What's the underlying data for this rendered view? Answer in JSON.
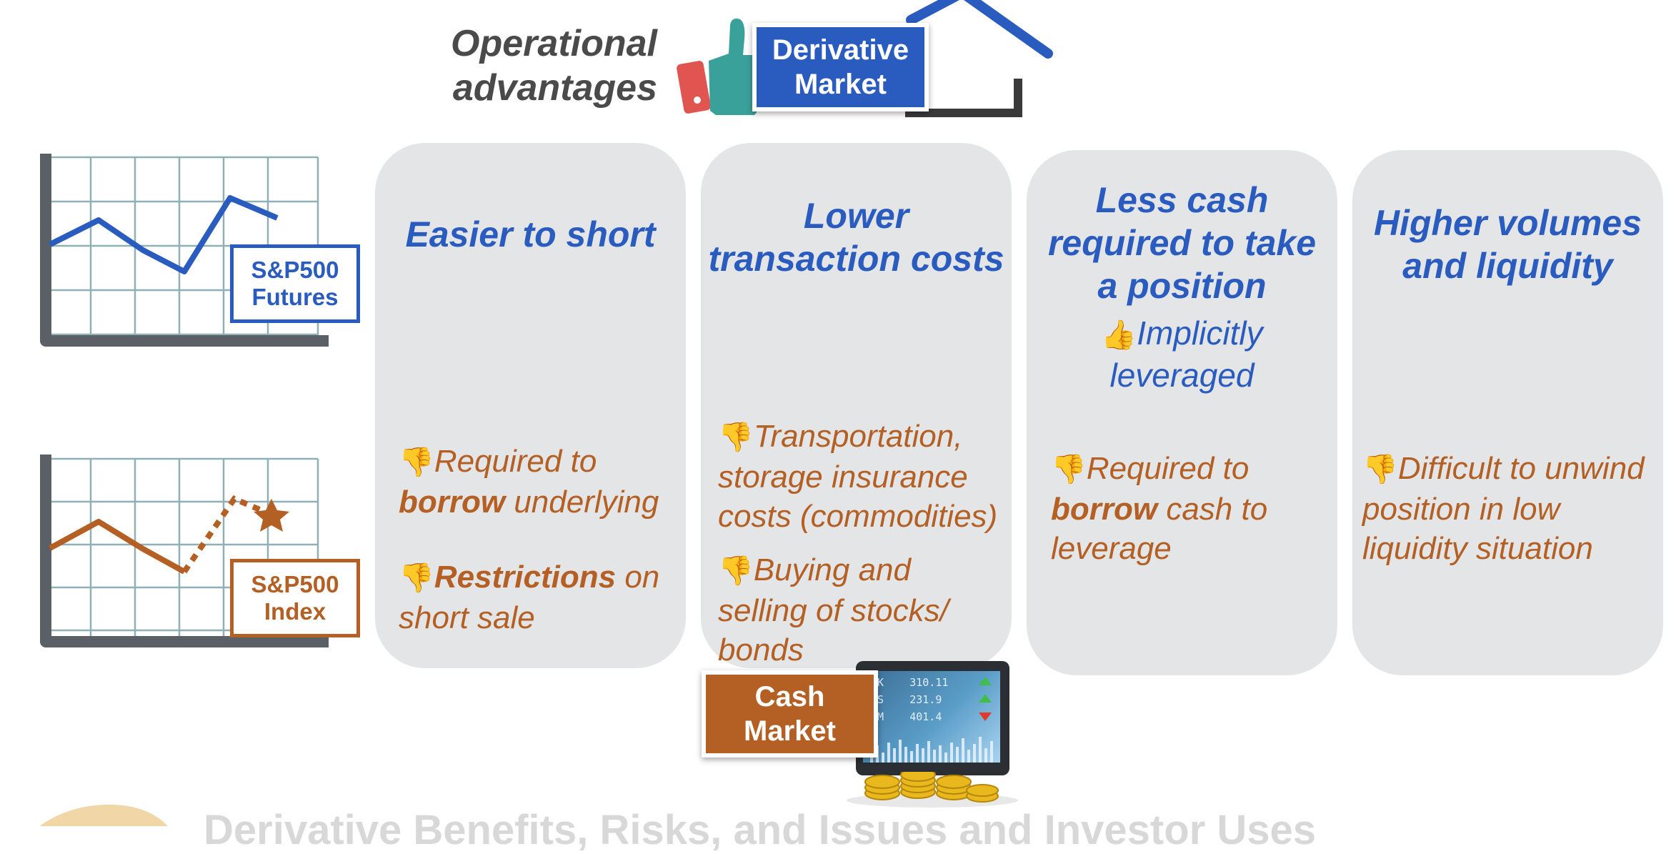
{
  "header": {
    "operational_line1": "Operational",
    "operational_line2": "advantages",
    "derivative_line1": "Derivative",
    "derivative_line2": "Market"
  },
  "charts": {
    "futures_line1": "S&P500",
    "futures_line2": "Futures",
    "index_line1": "S&P500",
    "index_line2": "Index"
  },
  "cards": [
    {
      "title": "Easier to short",
      "cons": [
        {
          "pre": "Required to ",
          "bold": "borrow",
          "post": " underlying"
        },
        {
          "pre": "",
          "bold": "Restrictions",
          "post": " on short sale"
        }
      ]
    },
    {
      "title_line1": "Lower",
      "title_line2": "transaction costs",
      "cons": [
        {
          "line1": "Transportation,",
          "line2": "storage insurance",
          "line3": "costs (commodities)"
        },
        {
          "line1": "Buying and",
          "line2": "selling of stocks/",
          "line3": "bonds"
        }
      ]
    },
    {
      "title_line1": "Less cash",
      "title_line2": "required to take",
      "title_line3": "a position",
      "pro_line1": "Implicitly",
      "pro_line2": "leveraged",
      "cons": [
        {
          "pre": "Required to ",
          "bold": "borrow",
          "post": " cash to leverage"
        }
      ]
    },
    {
      "title_line1": "Higher volumes",
      "title_line2": "and liquidity",
      "cons": [
        {
          "line1": "Difficult to unwind",
          "line2": "position in low",
          "line3": "liquidity situation"
        }
      ]
    }
  ],
  "cash_market": {
    "line1": "Cash",
    "line2": "Market",
    "screen_rows": [
      {
        "ticker": "STK",
        "value": "310.11"
      },
      {
        "ticker": "OKS",
        "value": "231.9"
      },
      {
        "ticker": "COM",
        "value": "401.4"
      }
    ]
  },
  "footer": {
    "text": "Derivative Benefits, Risks, and Issues and Investor Uses"
  },
  "colors": {
    "blue": "#2a5bbf",
    "orange": "#b45f23",
    "card": "#e4e5e7"
  }
}
